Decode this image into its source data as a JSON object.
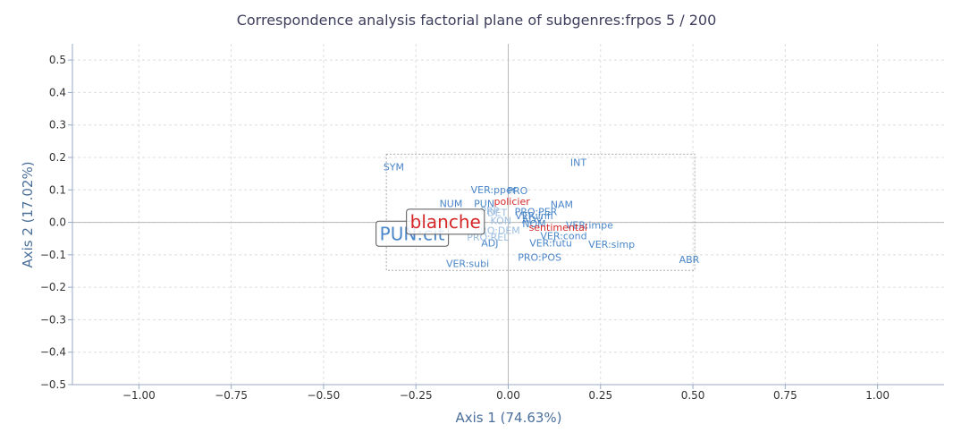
{
  "chart_data": {
    "type": "scatter",
    "title": "Correspondence analysis factorial plane of subgenres:frpos 5 / 200",
    "xlabel": "Axis 1 (74.63%)",
    "ylabel": "Axis 2 (17.02%)",
    "xlim": [
      -1.18,
      1.18
    ],
    "ylim": [
      -0.5,
      0.55
    ],
    "xticks": [
      -1.0,
      -0.75,
      -0.5,
      -0.25,
      0.0,
      0.25,
      0.5,
      0.75,
      1.0
    ],
    "xtick_labels": [
      "−1.00",
      "−0.75",
      "−0.50",
      "−0.25",
      "0.00",
      "0.25",
      "0.50",
      "0.75",
      "1.00"
    ],
    "yticks": [
      0.5,
      0.4,
      0.3,
      0.2,
      0.1,
      0.0,
      -0.1,
      -0.2,
      -0.3,
      -0.4,
      -0.5
    ],
    "ytick_labels": [
      "0.5",
      "0.4",
      "0.3",
      "0.2",
      "0.1",
      "0.0",
      "−0.1",
      "−0.2",
      "−0.3",
      "−0.4",
      "−0.5"
    ],
    "grid": true,
    "zoom_box": {
      "x": [
        -0.33,
        0.505
      ],
      "y": [
        -0.148,
        0.21
      ]
    },
    "colors": {
      "pos": "#4a86c8",
      "pos_faint": "#9bbde0",
      "subgenre": "#d62728",
      "subgenre_faint": "#f0a0a0",
      "highlight_border": "#555555"
    },
    "series": [
      {
        "name": "pos",
        "points": [
          {
            "label": "SYM",
            "x": -0.31,
            "y": 0.17
          },
          {
            "label": "INT",
            "x": 0.19,
            "y": 0.185
          },
          {
            "label": "VER:pper",
            "x": -0.04,
            "y": 0.1
          },
          {
            "label": "PRO",
            "x": 0.025,
            "y": 0.098
          },
          {
            "label": "NUM",
            "x": -0.155,
            "y": 0.057
          },
          {
            "label": "PUN",
            "x": -0.065,
            "y": 0.057
          },
          {
            "label": "NAM",
            "x": 0.145,
            "y": 0.055
          },
          {
            "label": "PRO:PER",
            "x": 0.075,
            "y": 0.033
          },
          {
            "label": "VER:infi",
            "x": 0.07,
            "y": 0.02
          },
          {
            "label": "ADV",
            "x": 0.065,
            "y": 0.008
          },
          {
            "label": "NOM",
            "x": 0.07,
            "y": -0.004
          },
          {
            "label": "VER:impe",
            "x": 0.22,
            "y": -0.008
          },
          {
            "label": "VER:cond",
            "x": 0.15,
            "y": -0.042
          },
          {
            "label": "VER:futu",
            "x": 0.115,
            "y": -0.064
          },
          {
            "label": "VER:simp",
            "x": 0.28,
            "y": -0.068
          },
          {
            "label": "ADJ",
            "x": -0.05,
            "y": -0.063
          },
          {
            "label": "ABR",
            "x": 0.49,
            "y": -0.115
          },
          {
            "label": "PRO:POS",
            "x": 0.085,
            "y": -0.108
          },
          {
            "label": "VER:subi",
            "x": -0.11,
            "y": -0.127
          },
          {
            "label": "PUN:cit",
            "x": -0.26,
            "y": -0.035,
            "highlight": true
          },
          {
            "label": "PRP",
            "x": -0.05,
            "y": 0.035,
            "faint": true
          },
          {
            "label": "DET",
            "x": -0.03,
            "y": 0.03,
            "faint": true
          },
          {
            "label": "KON",
            "x": -0.02,
            "y": 0.005,
            "faint": true
          },
          {
            "label": "PRO:DEM",
            "x": -0.03,
            "y": -0.025,
            "faint": true
          },
          {
            "label": "PRO:REL",
            "x": -0.055,
            "y": -0.045,
            "faint": true
          }
        ]
      },
      {
        "name": "subgenres",
        "points": [
          {
            "label": "policier",
            "x": 0.01,
            "y": 0.065,
            "size": 11
          },
          {
            "label": "blanche",
            "x": -0.17,
            "y": 0.002,
            "size": 20,
            "highlight": true
          },
          {
            "label": "sentimental",
            "x": 0.135,
            "y": -0.015,
            "size": 11
          }
        ]
      }
    ]
  }
}
